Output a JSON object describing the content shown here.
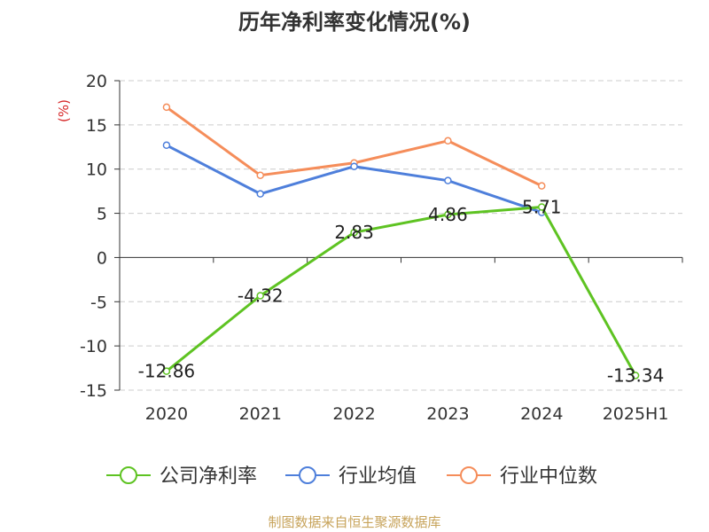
{
  "chart_data": {
    "type": "line",
    "title": "历年净利率变化情况(%)",
    "ylabel": "(%)",
    "xlabel": "",
    "categories": [
      "2020",
      "2021",
      "2022",
      "2023",
      "2024",
      "2025H1"
    ],
    "ylim": [
      -15,
      20
    ],
    "yticks": [
      "20",
      "15",
      "10",
      "5",
      "0",
      "-5",
      "-10",
      "-15"
    ],
    "grid": true,
    "legend_position": "bottom",
    "series": [
      {
        "name": "公司净利率",
        "color": "#5ec322",
        "values": [
          -12.86,
          -4.32,
          2.83,
          4.86,
          5.71,
          -13.34
        ],
        "labels": [
          "-12.86",
          "-4.32",
          "2.83",
          "4.86",
          "5.71",
          "-13.34"
        ]
      },
      {
        "name": "行业均值",
        "color": "#4e7fdb",
        "values": [
          12.7,
          7.2,
          10.3,
          8.7,
          5.1,
          null
        ]
      },
      {
        "name": "行业中位数",
        "color": "#f58d5a",
        "values": [
          17.0,
          9.3,
          10.7,
          13.2,
          8.1,
          null
        ]
      }
    ]
  },
  "source_text": "制图数据来自恒生聚源数据库"
}
